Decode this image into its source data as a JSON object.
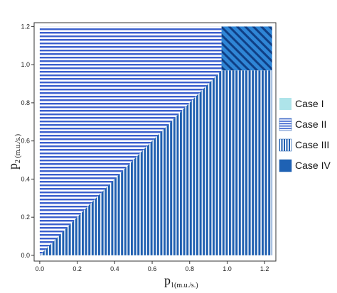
{
  "chart_data": {
    "type": "area",
    "description_source": "region plot",
    "xlim": [
      -0.03,
      1.26
    ],
    "ylim": [
      -0.03,
      1.22
    ],
    "x_ticks": [
      0.0,
      0.2,
      0.4,
      0.6,
      0.8,
      1.0,
      1.2
    ],
    "y_ticks": [
      0.0,
      0.2,
      0.4,
      0.6,
      0.8,
      1.0,
      1.2
    ],
    "x_tick_labels": [
      "0.0",
      "0.2",
      "0.4",
      "0.6",
      "0.8",
      "1.0",
      "1.2"
    ],
    "y_tick_labels": [
      "0.0",
      "0.2",
      "0.4",
      "0.6",
      "0.8",
      "1.0",
      "1.2"
    ],
    "xlabel": {
      "main": "p",
      "sub": "1(m.u./s.)"
    },
    "ylabel": {
      "main": "p",
      "sub": "2 (m.u./s.)"
    },
    "threshold": 0.97,
    "plot_extent": {
      "x": [
        0.0,
        1.24
      ],
      "y": [
        0.0,
        1.2
      ]
    },
    "regions": [
      {
        "name": "Case I",
        "pattern": "solid",
        "color": "#aee4ea",
        "condition": "none visible"
      },
      {
        "name": "Case II",
        "pattern": "horizontal",
        "color": "#3a5fcd",
        "condition": "p2 > p1 and p1 < 0.97"
      },
      {
        "name": "Case III",
        "pattern": "vertical",
        "color": "#1f5fb0",
        "condition": "p2 < p1 and p2 < 0.97"
      },
      {
        "name": "Case IV",
        "pattern": "diagonal",
        "color": "#1d5fa8",
        "condition": "p1 > 0.97 and p2 > 0.97"
      }
    ],
    "legend_position": "right",
    "grid": false
  }
}
